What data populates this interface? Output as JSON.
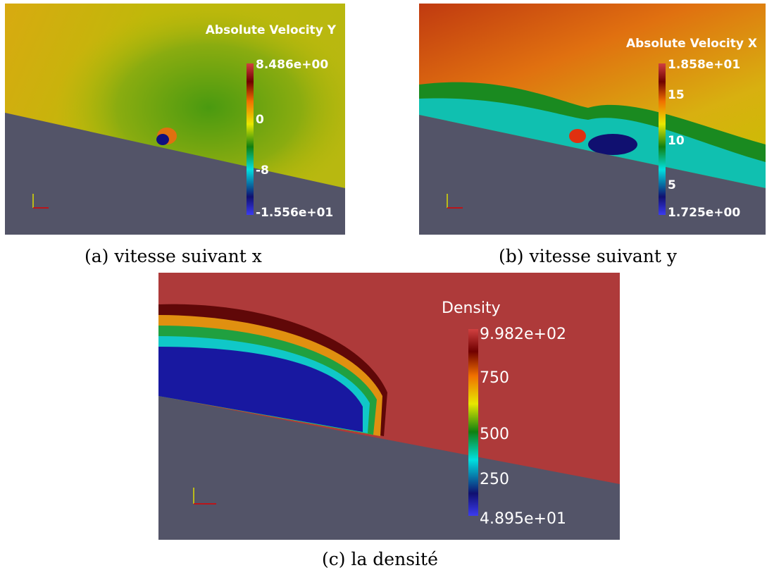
{
  "panels": [
    {
      "legend": {
        "title": "Absolute Velocity Y",
        "labels": [
          "8.486e+00",
          "0",
          "-8",
          "-1.556e+01"
        ]
      },
      "caption": "(a) vitesse suivant x"
    },
    {
      "legend": {
        "title": "Absolute Velocity X",
        "labels": [
          "1.858e+01",
          "15",
          "10",
          "5",
          "1.725e+00"
        ]
      },
      "caption": "(b) vitesse suivant y"
    },
    {
      "legend": {
        "title": "Density",
        "labels": [
          "9.982e+02",
          "750",
          "500",
          "250",
          "4.895e+01"
        ]
      },
      "caption": "(c) la densité"
    }
  ]
}
